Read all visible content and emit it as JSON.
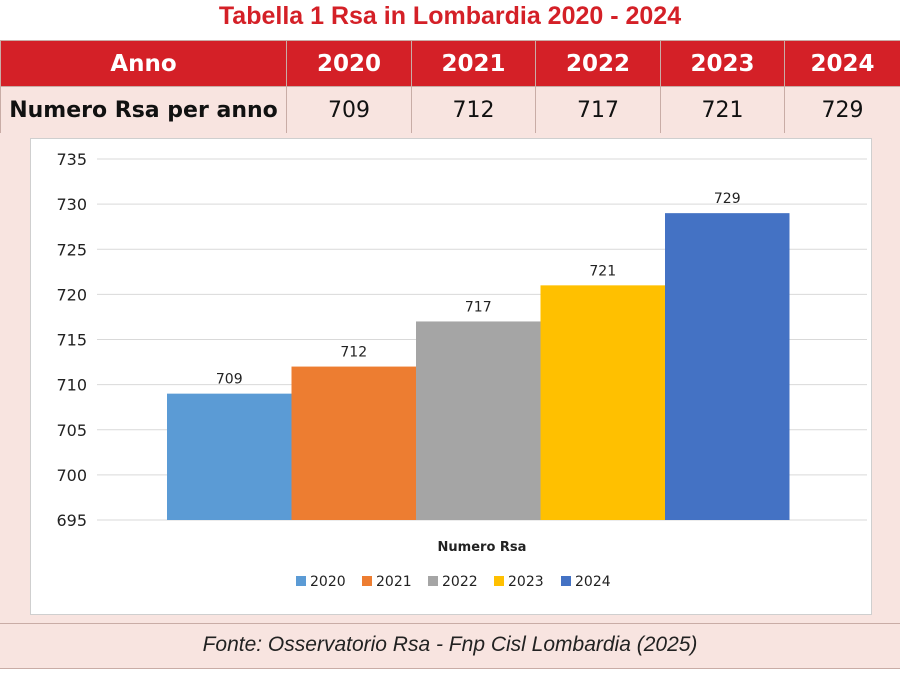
{
  "title": "Tabella 1  Rsa in Lombardia 2020 - 2024",
  "table": {
    "header_label": "Anno",
    "years": [
      "2020",
      "2021",
      "2022",
      "2023",
      "2024"
    ],
    "row_label": "Numero Rsa per anno",
    "values": [
      "709",
      "712",
      "717",
      "721",
      "729"
    ]
  },
  "chart_data": {
    "type": "bar",
    "xlabel": "Numero Rsa",
    "ylabel": "",
    "ylim": [
      695,
      735
    ],
    "yticks": [
      695,
      700,
      705,
      710,
      715,
      720,
      725,
      730,
      735
    ],
    "grid": true,
    "legend_position": "bottom",
    "series": [
      {
        "name": "2020",
        "value": 709,
        "color": "#5b9bd5"
      },
      {
        "name": "2021",
        "value": 712,
        "color": "#ed7d31"
      },
      {
        "name": "2022",
        "value": 717,
        "color": "#a5a5a5"
      },
      {
        "name": "2023",
        "value": 721,
        "color": "#ffc000"
      },
      {
        "name": "2024",
        "value": 729,
        "color": "#4472c4"
      }
    ]
  },
  "footer": "Fonte: Osservatorio Rsa - Fnp Cisl Lombardia (2025)"
}
